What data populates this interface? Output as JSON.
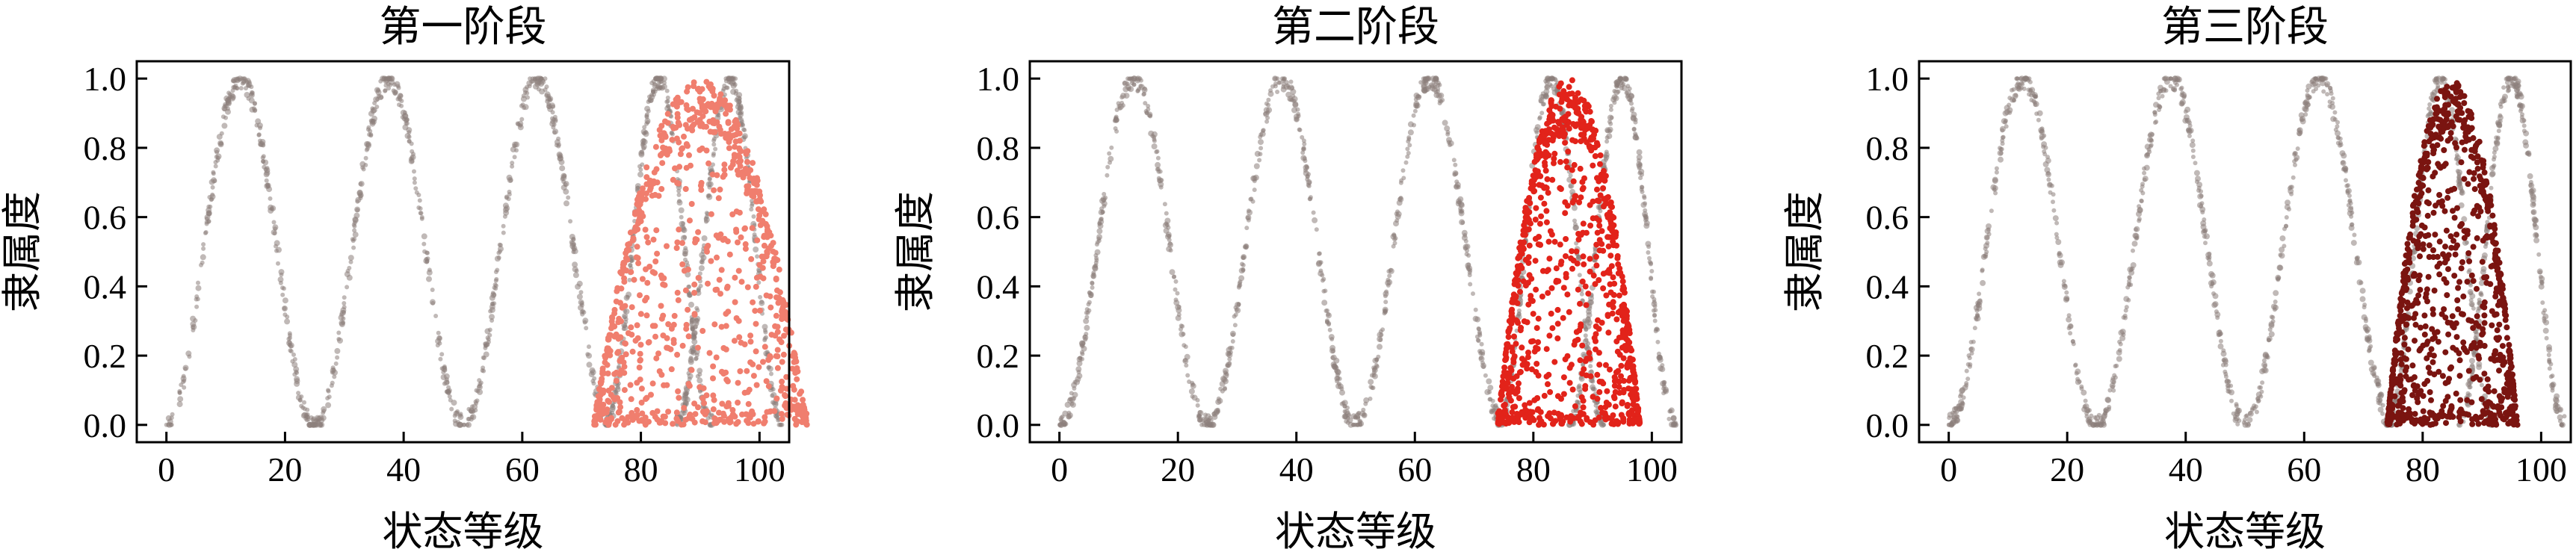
{
  "chart_data": [
    {
      "type": "scatter",
      "title": "第一阶段",
      "xlabel": "状态等级",
      "ylabel": "隶属度",
      "xlim": [
        -5,
        105
      ],
      "ylim": [
        -0.05,
        1.05
      ],
      "xticks": [
        "0",
        "20",
        "40",
        "60",
        "80",
        "100"
      ],
      "yticks": [
        "0.0",
        "0.2",
        "0.4",
        "0.6",
        "0.8",
        "1.0"
      ],
      "reference_peaks_x": [
        12.5,
        37.5,
        62.5,
        83,
        95
      ],
      "highlight": {
        "center": 90,
        "spread": 18,
        "color": "#f07e6e"
      },
      "grid": false
    },
    {
      "type": "scatter",
      "title": "第二阶段",
      "xlabel": "状态等级",
      "ylabel": "隶属度",
      "xlim": [
        -5,
        105
      ],
      "ylim": [
        -0.05,
        1.05
      ],
      "xticks": [
        "0",
        "20",
        "40",
        "60",
        "80",
        "100"
      ],
      "yticks": [
        "0.0",
        "0.2",
        "0.4",
        "0.6",
        "0.8",
        "1.0"
      ],
      "reference_peaks_x": [
        12.5,
        37.5,
        62.5,
        83,
        95
      ],
      "highlight": {
        "center": 86,
        "spread": 12,
        "color": "#e2231a"
      },
      "grid": false
    },
    {
      "type": "scatter",
      "title": "第三阶段",
      "xlabel": "状态等级",
      "ylabel": "隶属度",
      "xlim": [
        -5,
        105
      ],
      "ylim": [
        -0.05,
        1.05
      ],
      "xticks": [
        "0",
        "20",
        "40",
        "60",
        "80",
        "100"
      ],
      "yticks": [
        "0.0",
        "0.2",
        "0.4",
        "0.6",
        "0.8",
        "1.0"
      ],
      "reference_peaks_x": [
        12.5,
        37.5,
        62.5,
        83,
        95
      ],
      "highlight": {
        "center": 85,
        "spread": 11,
        "color": "#7a1410"
      },
      "grid": false
    }
  ],
  "colors": {
    "reference": "#8c7f7b",
    "axis": "#000000"
  }
}
